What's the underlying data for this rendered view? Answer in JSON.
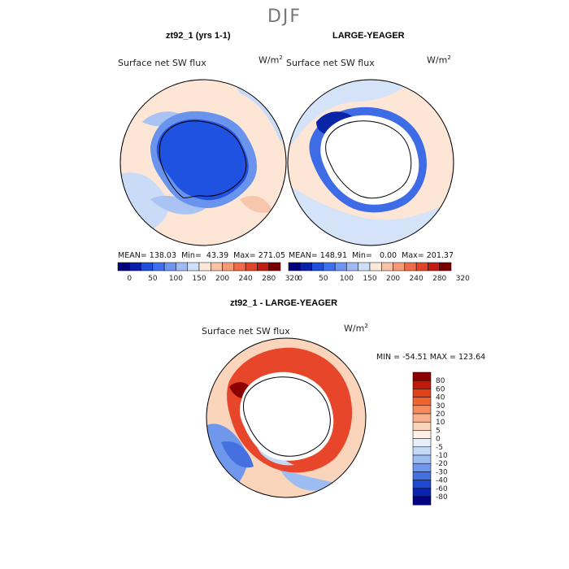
{
  "figure": {
    "season": "DJF"
  },
  "panels": {
    "left": {
      "title": "zt92_1 (yrs 1-1)",
      "variable": "Surface net SW flux",
      "units_base": "W/m",
      "units_exp": "2",
      "stats": "MEAN= 138.03  Min=  43.39  Max= 271.05"
    },
    "right": {
      "title": "LARGE-YEAGER",
      "variable": "Surface net SW flux",
      "units_base": "W/m",
      "units_exp": "2",
      "stats": "MEAN= 148.91  Min=   0.00  Max= 201.37"
    },
    "diff": {
      "title": "zt92_1 - LARGE-YEAGER",
      "variable": "Surface net SW flux",
      "units_base": "W/m",
      "units_exp": "2",
      "stats": "MIN = -54.51 MAX = 123.64"
    }
  },
  "chart_data": [
    {
      "type": "heatmap",
      "title": "zt92_1 (yrs 1-1)",
      "projection": "south polar stereographic",
      "field": "Surface net SW flux",
      "units": "W/m^2",
      "mean": 138.03,
      "min": 43.39,
      "max": 271.05,
      "colorbar": {
        "orientation": "horizontal",
        "ticks": [
          "0",
          "50",
          "100",
          "150",
          "200",
          "240",
          "280",
          "320"
        ],
        "colors": [
          "#00007a",
          "#0a1fa8",
          "#1f4ed8",
          "#3d6ff0",
          "#6e95f2",
          "#9fbaf5",
          "#cde0f8",
          "#fde8dc",
          "#f8c2a4",
          "#f59a76",
          "#ef6c4a",
          "#e0452b",
          "#bf1e12",
          "#7a0000"
        ]
      }
    },
    {
      "type": "heatmap",
      "title": "LARGE-YEAGER",
      "projection": "south polar stereographic",
      "field": "Surface net SW flux",
      "units": "W/m^2",
      "mean": 148.91,
      "min": 0.0,
      "max": 201.37,
      "colorbar": {
        "orientation": "horizontal",
        "ticks": [
          "0",
          "50",
          "100",
          "150",
          "200",
          "240",
          "280",
          "320"
        ],
        "colors": [
          "#00007a",
          "#0a1fa8",
          "#1f4ed8",
          "#3d6ff0",
          "#6e95f2",
          "#9fbaf5",
          "#cde0f8",
          "#fde8dc",
          "#f8c2a4",
          "#f59a76",
          "#ef6c4a",
          "#e0452b",
          "#bf1e12",
          "#7a0000"
        ]
      }
    },
    {
      "type": "heatmap",
      "title": "zt92_1 - LARGE-YEAGER",
      "projection": "south polar stereographic",
      "field": "Surface net SW flux difference",
      "units": "W/m^2",
      "min": -54.51,
      "max": 123.64,
      "colorbar": {
        "orientation": "vertical",
        "ticks": [
          "80",
          "60",
          "40",
          "30",
          "20",
          "10",
          "5",
          "0",
          "-5",
          "-10",
          "-20",
          "-30",
          "-40",
          "-60",
          "-80"
        ],
        "colors": [
          "#8c0000",
          "#c01a08",
          "#e0401a",
          "#f06430",
          "#f58c5c",
          "#f8b090",
          "#fbd4bc",
          "#fdf0e6",
          "#e6f0fb",
          "#c4d9f6",
          "#9dbcf2",
          "#6f97ec",
          "#4470e0",
          "#1f48d0",
          "#0a22b0",
          "#000080"
        ]
      }
    }
  ]
}
